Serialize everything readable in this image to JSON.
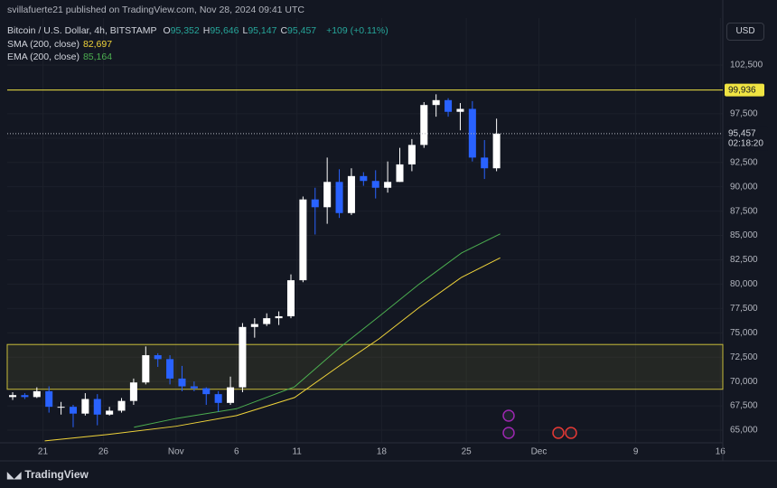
{
  "header": {
    "publisher": "svillafuerte21 published on TradingView.com, Nov 28, 2024 09:41 UTC",
    "symbol": "Bitcoin / U.S. Dollar, 4h, BITSTAMP",
    "ohlc": [
      [
        "O",
        "95,352"
      ],
      [
        "H",
        "95,646"
      ],
      [
        "L",
        "95,147"
      ],
      [
        "C",
        "95,457"
      ]
    ],
    "change": "+109 (+0.11%)",
    "currency": "USD",
    "brand": "TradingView"
  },
  "chart_data": {
    "type": "candlestick",
    "x": [
      18.5,
      19.5,
      20.5,
      21.5,
      22.5,
      23.5,
      24.5,
      25.5,
      26.5,
      27.5,
      28.5,
      29.5,
      30.5,
      31.5,
      32.5,
      33.5,
      34.5,
      35.5,
      36.5,
      37.5,
      38.5,
      39.5,
      40.5,
      41.5,
      42.5,
      43.5,
      44.5,
      45.5,
      46.5,
      47.5,
      48.5,
      49.5,
      50.5,
      51.5,
      52.5,
      53.5,
      54.5,
      55.5,
      56.5,
      57.5,
      58.5
    ],
    "open": [
      68400,
      68600,
      68400,
      69000,
      67400,
      67400,
      66700,
      68200,
      66600,
      67000,
      68000,
      69900,
      72700,
      72300,
      70300,
      69500,
      69300,
      68700,
      67800,
      69400,
      75600,
      75900,
      76500,
      76700,
      80400,
      88700,
      87900,
      90500,
      87300,
      91100,
      90600,
      89900,
      90500,
      92300,
      94300,
      98400,
      98900,
      97700,
      98000,
      93000,
      91900
    ],
    "high": [
      68900,
      68800,
      69400,
      69500,
      67900,
      67600,
      68800,
      68700,
      67400,
      68300,
      70300,
      73600,
      72900,
      72700,
      71600,
      70000,
      69400,
      69000,
      70500,
      76000,
      76500,
      77000,
      77200,
      81000,
      89000,
      89900,
      93000,
      91800,
      91900,
      91500,
      91700,
      92600,
      94000,
      94900,
      98700,
      99500,
      99100,
      98600,
      98800,
      94800,
      97000
    ],
    "low": [
      68100,
      68200,
      68300,
      66800,
      66600,
      65300,
      66500,
      65500,
      66500,
      66800,
      67600,
      69700,
      71500,
      69700,
      69000,
      69000,
      67600,
      66900,
      67600,
      68900,
      74500,
      75700,
      75800,
      76500,
      80200,
      85100,
      86200,
      86800,
      87100,
      90100,
      88800,
      89400,
      90500,
      91600,
      94000,
      97200,
      97200,
      95800,
      92600,
      90800,
      91600
    ],
    "close": [
      68600,
      68400,
      69000,
      67400,
      67400,
      66700,
      68200,
      66600,
      67000,
      68000,
      69900,
      72700,
      72300,
      70300,
      69500,
      69300,
      68700,
      67800,
      69400,
      75600,
      75900,
      76500,
      76700,
      80400,
      88700,
      87900,
      90500,
      87300,
      91100,
      90600,
      89900,
      90500,
      92300,
      94300,
      98400,
      98900,
      97700,
      98000,
      93000,
      91900,
      95457
    ],
    "up_color": "#ffffff",
    "down_color": "#2962ff",
    "series": [
      {
        "name": "SMA (200, close)",
        "color": "#f0d43a",
        "value_label": "82,697",
        "x": [
          21.15,
          26.3,
          32,
          37,
          41.8,
          45.5,
          48.8,
          52.1,
          55.6,
          58.8
        ],
        "values": [
          63900,
          64550,
          65400,
          66500,
          68350,
          71600,
          74400,
          77600,
          80700,
          82697
        ]
      },
      {
        "name": "EMA (200, close)",
        "color": "#4caf50",
        "value_label": "85,164",
        "x": [
          28.53,
          32,
          37,
          41.8,
          45.5,
          48.8,
          52.1,
          55.6,
          58.8
        ],
        "values": [
          65300,
          66200,
          67200,
          69450,
          73450,
          76700,
          80000,
          83200,
          85164
        ]
      }
    ],
    "hlines": [
      {
        "value": 99936,
        "label": "99,936",
        "color": "#f0e442"
      }
    ],
    "last_price": {
      "value": 95457,
      "label": "95,457",
      "countdown": "02:18:20"
    },
    "zone": [
      69200,
      73800
    ],
    "ylim": [
      63700,
      107330
    ],
    "yticks": [
      {
        "value": 65000,
        "label": "65,000"
      },
      {
        "value": 67500,
        "label": "67,500"
      },
      {
        "value": 70000,
        "label": "70,000"
      },
      {
        "value": 72500,
        "label": "72,500"
      },
      {
        "value": 75000,
        "label": "75,000"
      },
      {
        "value": 77500,
        "label": "77,500"
      },
      {
        "value": 80000,
        "label": "80,000"
      },
      {
        "value": 82500,
        "label": "82,500"
      },
      {
        "value": 85000,
        "label": "85,000"
      },
      {
        "value": 87500,
        "label": "87,500"
      },
      {
        "value": 90000,
        "label": "90,000"
      },
      {
        "value": 92500,
        "label": "92,500"
      },
      {
        "value": 95000,
        "label": "95,000"
      },
      {
        "value": 97500,
        "label": "97,500"
      },
      {
        "value": 102500,
        "label": "102,500"
      }
    ],
    "xlim": [
      18.05,
      77.2
    ],
    "xticks": [
      {
        "value": 21,
        "label": "21"
      },
      {
        "value": 26,
        "label": "26"
      },
      {
        "value": 32,
        "label": "Nov"
      },
      {
        "value": 37,
        "label": "6"
      },
      {
        "value": 42,
        "label": "11"
      },
      {
        "value": 49,
        "label": "18"
      },
      {
        "value": 56,
        "label": "25"
      },
      {
        "value": 62,
        "label": "Dec"
      },
      {
        "value": 70,
        "label": "9"
      },
      {
        "value": 77,
        "label": "16"
      }
    ],
    "grid": true
  }
}
